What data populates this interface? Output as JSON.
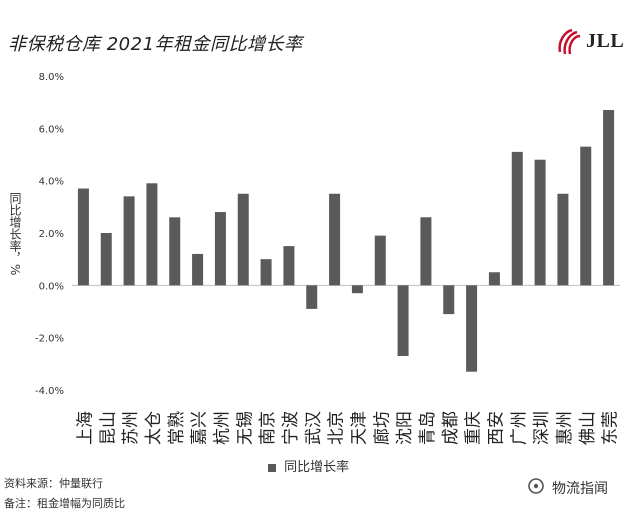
{
  "header": {
    "title": "非保税仓库 2021年租金同比增长率",
    "logo_text": "JLL"
  },
  "footer": {
    "source": "资料来源：仲量联行",
    "note": "备注：租金增幅为同质比",
    "watermark": "物流指闻"
  },
  "colors": {
    "bar": "#5a5a5d",
    "axis": "#bfbfbf",
    "logo": "#c8102e"
  },
  "chart_data": {
    "type": "bar",
    "title": "非保税仓库 2021年租金同比增长率",
    "xlabel": "",
    "ylabel": "同比增长率，%",
    "ylim": [
      -4.0,
      8.0
    ],
    "yticks": [
      -4.0,
      -2.0,
      0.0,
      2.0,
      4.0,
      6.0,
      8.0
    ],
    "ytick_labels": [
      "-4.0%",
      "-2.0%",
      "0.0%",
      "2.0%",
      "4.0%",
      "6.0%",
      "8.0%"
    ],
    "categories": [
      "上海",
      "昆山",
      "苏州",
      "太仓",
      "常熟",
      "嘉兴",
      "杭州",
      "无锡",
      "南京",
      "宁波",
      "武汉",
      "北京",
      "天津",
      "廊坊",
      "沈阳",
      "青岛",
      "成都",
      "重庆",
      "西安",
      "广州",
      "深圳",
      "惠州",
      "佛山",
      "东莞"
    ],
    "series": [
      {
        "name": "同比增长率",
        "values": [
          3.7,
          2.0,
          3.4,
          3.9,
          2.6,
          1.2,
          2.8,
          3.5,
          1.0,
          1.5,
          -0.9,
          3.5,
          -0.3,
          1.9,
          -2.7,
          2.6,
          -1.1,
          -3.3,
          0.5,
          5.1,
          4.8,
          3.5,
          5.3,
          6.7
        ]
      }
    ],
    "legend": "bottom-center",
    "grid": false
  }
}
